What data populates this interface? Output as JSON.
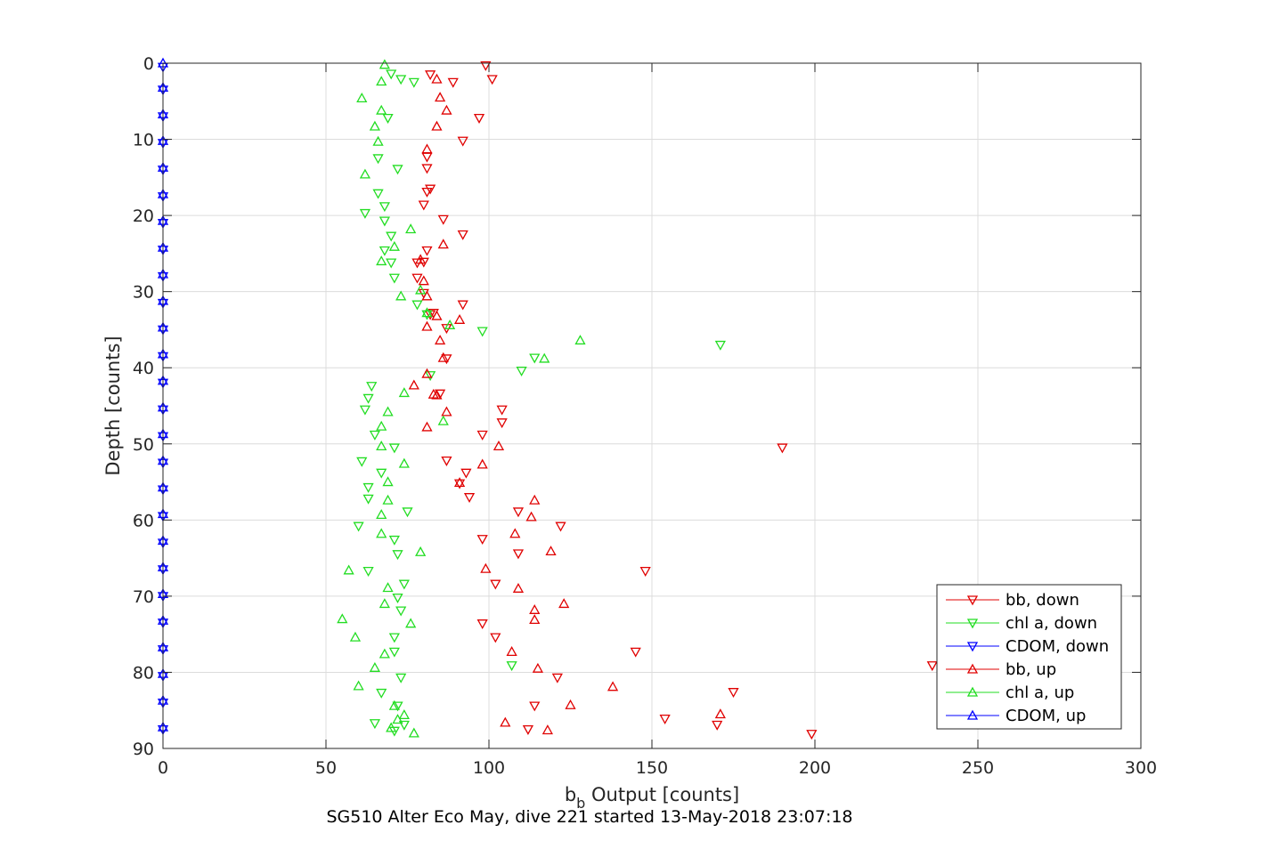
{
  "chart_data": {
    "type": "scatter",
    "title": "SG510 Alter Eco May, dive 221 started 13-May-2018 23:07:18",
    "xlabel": {
      "main": "b",
      "sub": "b",
      "rest": " Output [counts]"
    },
    "ylabel": "Depth [counts]",
    "xlim": [
      0,
      300
    ],
    "ylim": [
      0,
      90
    ],
    "y_reversed": true,
    "x_ticks": [
      0,
      50,
      100,
      150,
      200,
      250,
      300
    ],
    "y_ticks": [
      0,
      10,
      20,
      30,
      40,
      50,
      60,
      70,
      80,
      90
    ],
    "x_tick_labels": [
      "0",
      "50",
      "100",
      "150",
      "200",
      "250",
      "300"
    ],
    "y_tick_labels": [
      "0",
      "10",
      "20",
      "30",
      "40",
      "50",
      "60",
      "70",
      "80",
      "90"
    ],
    "grid": true,
    "legend_position": "bottom-right",
    "series": [
      {
        "name": "bb, down",
        "color": "#e00000",
        "marker": "triangle-down",
        "points": [
          [
            99,
            0.3
          ],
          [
            82,
            1.5
          ],
          [
            101,
            2.1
          ],
          [
            89,
            2.5
          ],
          [
            97,
            7.2
          ],
          [
            92,
            10.2
          ],
          [
            81,
            12.3
          ],
          [
            81,
            13.8
          ],
          [
            82,
            16.5
          ],
          [
            81,
            16.9
          ],
          [
            80,
            18.6
          ],
          [
            86,
            20.5
          ],
          [
            92,
            22.5
          ],
          [
            81,
            24.6
          ],
          [
            80,
            26.1
          ],
          [
            78,
            26.2
          ],
          [
            78,
            28.2
          ],
          [
            80,
            30.2
          ],
          [
            92,
            31.7
          ],
          [
            83,
            32.8
          ],
          [
            82,
            33
          ],
          [
            87,
            34.8
          ],
          [
            87,
            38.8
          ],
          [
            85,
            43.4
          ],
          [
            104,
            45.5
          ],
          [
            104,
            47.2
          ],
          [
            98,
            48.8
          ],
          [
            190,
            50.5
          ],
          [
            87,
            52.2
          ],
          [
            93,
            53.8
          ],
          [
            91,
            55.2
          ],
          [
            94,
            57
          ],
          [
            109,
            58.9
          ],
          [
            98,
            62.5
          ],
          [
            109,
            64.4
          ],
          [
            122,
            60.8
          ],
          [
            148,
            66.7
          ],
          [
            102,
            68.4
          ],
          [
            98,
            73.6
          ],
          [
            102,
            75.4
          ],
          [
            145,
            77.3
          ],
          [
            236,
            79.1
          ],
          [
            121,
            80.7
          ],
          [
            175,
            82.6
          ],
          [
            114,
            84.4
          ],
          [
            154,
            86.1
          ],
          [
            170,
            86.9
          ],
          [
            112,
            87.5
          ],
          [
            199,
            88.1
          ]
        ]
      },
      {
        "name": "chl a, down",
        "color": "#22dd22",
        "marker": "triangle-down",
        "points": [
          [
            70,
            1.4
          ],
          [
            73,
            2.1
          ],
          [
            77,
            2.5
          ],
          [
            69,
            7.2
          ],
          [
            66,
            12.5
          ],
          [
            72,
            13.9
          ],
          [
            66,
            17.1
          ],
          [
            68,
            18.8
          ],
          [
            62,
            19.7
          ],
          [
            68,
            20.7
          ],
          [
            70,
            22.7
          ],
          [
            68,
            24.6
          ],
          [
            70,
            26.2
          ],
          [
            71,
            28.2
          ],
          [
            78,
            31.7
          ],
          [
            81,
            33
          ],
          [
            98,
            35.2
          ],
          [
            171,
            37
          ],
          [
            114,
            38.7
          ],
          [
            110,
            40.4
          ],
          [
            82,
            41
          ],
          [
            64,
            42.4
          ],
          [
            63,
            44
          ],
          [
            62,
            45.5
          ],
          [
            65,
            48.8
          ],
          [
            71,
            50.5
          ],
          [
            61,
            52.3
          ],
          [
            67,
            53.8
          ],
          [
            63,
            55.7
          ],
          [
            63,
            57.2
          ],
          [
            75,
            58.9
          ],
          [
            60,
            60.8
          ],
          [
            71,
            62.6
          ],
          [
            72,
            64.5
          ],
          [
            63,
            66.7
          ],
          [
            74,
            68.4
          ],
          [
            72,
            70.2
          ],
          [
            73,
            71.9
          ],
          [
            71,
            75.4
          ],
          [
            71,
            77.3
          ],
          [
            107,
            79.1
          ],
          [
            73,
            80.7
          ],
          [
            67,
            82.7
          ],
          [
            72,
            84.4
          ],
          [
            65,
            86.7
          ],
          [
            74,
            86.9
          ],
          [
            71,
            87.7
          ]
        ]
      },
      {
        "name": "CDOM, down",
        "color": "#0000ff",
        "marker": "triangle-down",
        "points": [
          [
            0,
            0.5
          ],
          [
            0,
            3.5
          ],
          [
            0,
            7
          ],
          [
            0,
            10.5
          ],
          [
            0,
            14
          ],
          [
            0,
            17.5
          ],
          [
            0,
            21
          ],
          [
            0,
            24.5
          ],
          [
            0,
            28
          ],
          [
            0,
            31.5
          ],
          [
            0,
            35
          ],
          [
            0,
            38.5
          ],
          [
            0,
            42
          ],
          [
            0,
            45.5
          ],
          [
            0,
            49
          ],
          [
            0,
            52.5
          ],
          [
            0,
            56
          ],
          [
            0,
            59.5
          ],
          [
            0,
            63
          ],
          [
            0,
            66.5
          ],
          [
            0,
            70
          ],
          [
            0,
            73.5
          ],
          [
            0,
            77
          ],
          [
            0,
            80.5
          ],
          [
            0,
            84
          ],
          [
            0,
            87.5
          ]
        ]
      },
      {
        "name": "bb, up",
        "color": "#e00000",
        "marker": "triangle-up",
        "points": [
          [
            84,
            2.1
          ],
          [
            85,
            4.5
          ],
          [
            87,
            6.2
          ],
          [
            84,
            8.3
          ],
          [
            81,
            11.3
          ],
          [
            86,
            23.8
          ],
          [
            79,
            25.8
          ],
          [
            80,
            28.6
          ],
          [
            81,
            30.6
          ],
          [
            84,
            33.2
          ],
          [
            91,
            33.7
          ],
          [
            81,
            34.6
          ],
          [
            85,
            36.4
          ],
          [
            86,
            38.7
          ],
          [
            81,
            40.8
          ],
          [
            77,
            42.3
          ],
          [
            83,
            43.5
          ],
          [
            84,
            43.6
          ],
          [
            87,
            45.8
          ],
          [
            81,
            47.8
          ],
          [
            103,
            50.3
          ],
          [
            98,
            52.7
          ],
          [
            91,
            55.1
          ],
          [
            114,
            57.4
          ],
          [
            113,
            59.6
          ],
          [
            108,
            61.8
          ],
          [
            119,
            64.1
          ],
          [
            99,
            66.4
          ],
          [
            109,
            69
          ],
          [
            123,
            71
          ],
          [
            114,
            71.8
          ],
          [
            114,
            73.1
          ],
          [
            107,
            77.3
          ],
          [
            115,
            79.5
          ],
          [
            138,
            81.9
          ],
          [
            125,
            84.3
          ],
          [
            105,
            86.6
          ],
          [
            171,
            85.5
          ],
          [
            118,
            87.6
          ]
        ]
      },
      {
        "name": "chl a, up",
        "color": "#22dd22",
        "marker": "triangle-up",
        "points": [
          [
            68,
            0.2
          ],
          [
            67,
            2.4
          ],
          [
            61,
            4.6
          ],
          [
            67,
            6.2
          ],
          [
            65,
            8.3
          ],
          [
            66,
            10.3
          ],
          [
            62,
            14.6
          ],
          [
            76,
            21.8
          ],
          [
            71,
            24.1
          ],
          [
            67,
            26
          ],
          [
            73,
            30.6
          ],
          [
            79,
            29.8
          ],
          [
            81,
            32.8
          ],
          [
            88,
            34.4
          ],
          [
            128,
            36.4
          ],
          [
            117,
            38.8
          ],
          [
            74,
            43.3
          ],
          [
            69,
            45.8
          ],
          [
            67,
            47.7
          ],
          [
            86,
            47
          ],
          [
            67,
            50.3
          ],
          [
            74,
            52.6
          ],
          [
            69,
            55
          ],
          [
            69,
            57.4
          ],
          [
            67,
            59.3
          ],
          [
            67,
            61.8
          ],
          [
            79,
            64.2
          ],
          [
            57,
            66.6
          ],
          [
            69,
            68.9
          ],
          [
            68,
            71
          ],
          [
            55,
            73
          ],
          [
            76,
            73.6
          ],
          [
            59,
            75.4
          ],
          [
            68,
            77.6
          ],
          [
            65,
            79.4
          ],
          [
            60,
            81.8
          ],
          [
            71,
            84.4
          ],
          [
            72,
            86.2
          ],
          [
            74,
            85.6
          ],
          [
            77,
            88
          ],
          [
            70,
            87.3
          ]
        ]
      },
      {
        "name": "CDOM, up",
        "color": "#0000ff",
        "marker": "triangle-up",
        "points": [
          [
            0,
            0
          ],
          [
            0,
            3.2
          ],
          [
            0,
            6.7
          ],
          [
            0,
            10.2
          ],
          [
            0,
            13.7
          ],
          [
            0,
            17.2
          ],
          [
            0,
            20.7
          ],
          [
            0,
            24.2
          ],
          [
            0,
            27.7
          ],
          [
            0,
            31.2
          ],
          [
            0,
            34.7
          ],
          [
            0,
            38.2
          ],
          [
            0,
            41.7
          ],
          [
            0,
            45.2
          ],
          [
            0,
            48.7
          ],
          [
            0,
            52.2
          ],
          [
            0,
            55.7
          ],
          [
            0,
            59.2
          ],
          [
            0,
            62.7
          ],
          [
            0,
            66.2
          ],
          [
            0,
            69.7
          ],
          [
            0,
            73.2
          ],
          [
            0,
            76.7
          ],
          [
            0,
            80.2
          ],
          [
            0,
            83.7
          ],
          [
            0,
            87.2
          ]
        ]
      }
    ]
  }
}
